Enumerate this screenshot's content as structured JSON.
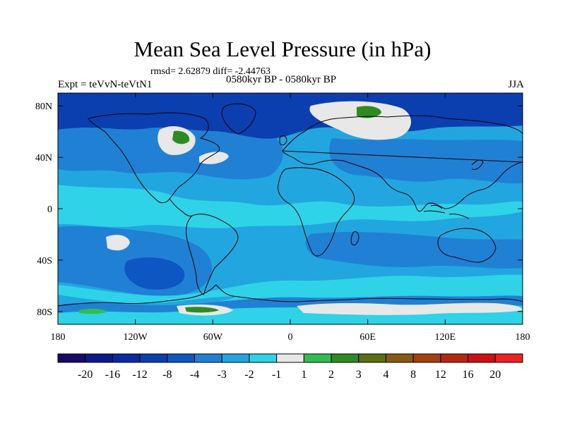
{
  "header": {
    "title": "Mean Sea Level Pressure (in hPa)",
    "stats": "rmsd= 2.62879 diff= -2.44763",
    "experiment": "Expt = teVvN-teVtN1",
    "period": "0580kyr BP - 0580kyr BP",
    "season": "JJA"
  },
  "map": {
    "lat_labels": [
      "80N",
      "40N",
      "0",
      "40S",
      "80S"
    ],
    "lat_values": [
      80,
      40,
      0,
      -40,
      -80
    ],
    "lon_labels": [
      "180",
      "120W",
      "60W",
      "0",
      "60E",
      "120E",
      "180"
    ],
    "lon_values": [
      -180,
      -120,
      -60,
      0,
      60,
      120,
      180
    ],
    "lon_range": [
      -180,
      180
    ],
    "lat_range": [
      -90,
      90
    ]
  },
  "colorbar": {
    "labels": [
      "-20",
      "-16",
      "-12",
      "-8",
      "-4",
      "-3",
      "-2",
      "-1",
      "1",
      "2",
      "3",
      "4",
      "8",
      "12",
      "16",
      "20"
    ],
    "colors": [
      "#1a0a66",
      "#0d1a8c",
      "#0a2aa3",
      "#0b3fb0",
      "#0d57c2",
      "#1f80d4",
      "#22a6e0",
      "#2ed3e8",
      "#e8e8e8",
      "#2fbf4e",
      "#2e8b22",
      "#5b6e12",
      "#8a5a10",
      "#a3420f",
      "#b8260e",
      "#d01010",
      "#f02020"
    ]
  }
}
